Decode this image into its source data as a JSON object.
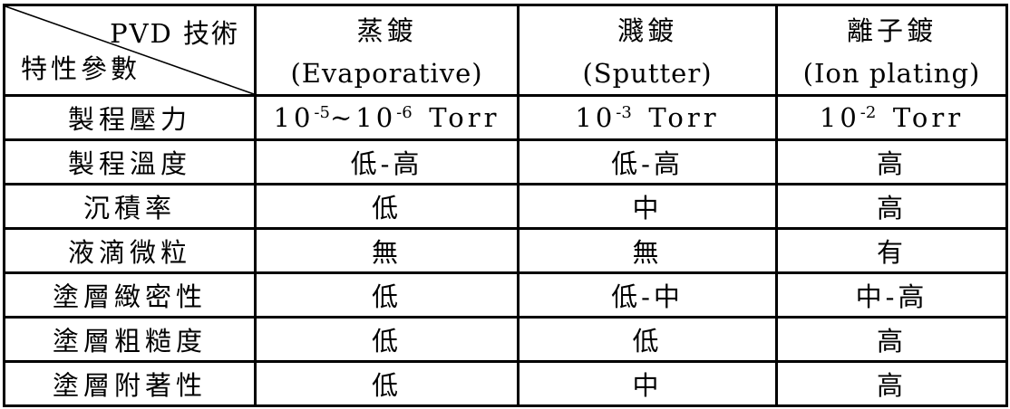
{
  "page": {
    "background_color": "#ffffff",
    "line_color": "#000000"
  },
  "table": {
    "corner": {
      "top_right_label": "PVD 技術",
      "bottom_left_label": "特性參數"
    },
    "column_headers": [
      {
        "zh": "蒸鍍",
        "en": "(Evaporative)"
      },
      {
        "zh": "濺鍍",
        "en": "(Sputter)"
      },
      {
        "zh": "離子鍍",
        "en": "(Ion plating)"
      }
    ],
    "rows": [
      {
        "label": "製程壓力",
        "cells": [
          [
            {
              "t": "10"
            },
            {
              "sup": "-5"
            },
            {
              "t": "~10"
            },
            {
              "sup": "-6"
            },
            {
              "t": " Torr"
            }
          ],
          [
            {
              "t": "10"
            },
            {
              "sup": "-3"
            },
            {
              "t": " Torr"
            }
          ],
          [
            {
              "t": "10"
            },
            {
              "sup": "-2"
            },
            {
              "t": " Torr"
            }
          ]
        ]
      },
      {
        "label": "製程溫度",
        "cells": [
          [
            {
              "t": "低-高"
            }
          ],
          [
            {
              "t": "低-高"
            }
          ],
          [
            {
              "t": "高"
            }
          ]
        ]
      },
      {
        "label": "沉積率",
        "cells": [
          [
            {
              "t": "低"
            }
          ],
          [
            {
              "t": "中"
            }
          ],
          [
            {
              "t": "高"
            }
          ]
        ]
      },
      {
        "label": "液滴微粒",
        "cells": [
          [
            {
              "t": "無"
            }
          ],
          [
            {
              "t": "無"
            }
          ],
          [
            {
              "t": "有"
            }
          ]
        ]
      },
      {
        "label": "塗層緻密性",
        "cells": [
          [
            {
              "t": "低"
            }
          ],
          [
            {
              "t": "低-中"
            }
          ],
          [
            {
              "t": "中-高"
            }
          ]
        ]
      },
      {
        "label": "塗層粗糙度",
        "cells": [
          [
            {
              "t": "低"
            }
          ],
          [
            {
              "t": "低"
            }
          ],
          [
            {
              "t": "高"
            }
          ]
        ]
      },
      {
        "label": "塗層附著性",
        "cells": [
          [
            {
              "t": "低"
            }
          ],
          [
            {
              "t": "中"
            }
          ],
          [
            {
              "t": "高"
            }
          ]
        ]
      }
    ]
  }
}
